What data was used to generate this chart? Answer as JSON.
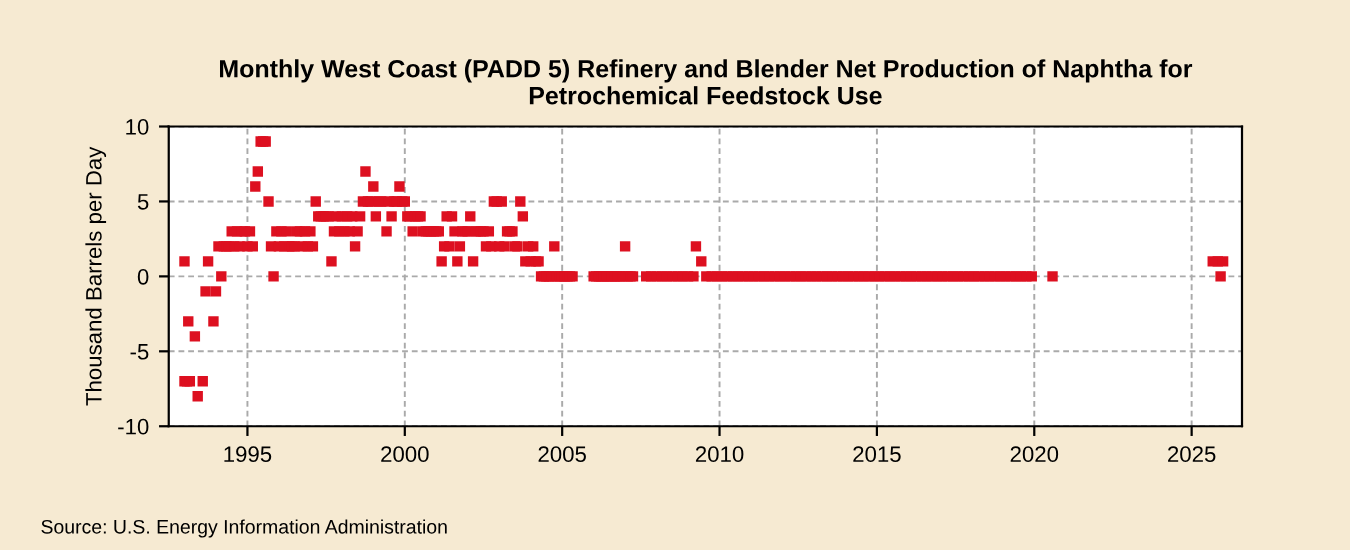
{
  "chart_data": {
    "type": "scatter",
    "title": "Monthly West Coast (PADD 5) Refinery and Blender Net Production of Naphtha for\nPetrochemical Feedstock Use",
    "ylabel": "Thousand Barrels per Day",
    "annotations": [
      "Source: U.S. Energy Information Administration"
    ],
    "xlim": [
      1992.5,
      2026.6
    ],
    "xticks": [
      1995,
      2000,
      2005,
      2010,
      2015,
      2020,
      2025
    ],
    "ylim": [
      -10,
      10
    ],
    "yticks": [
      -10,
      -5,
      0,
      5,
      10
    ],
    "grid": true,
    "marker": "square",
    "legend": false,
    "series": [
      {
        "color": "#dd1020",
        "x": [
          1993.0,
          1993.0,
          1993.08,
          1993.12,
          1993.17,
          1993.33,
          1993.42,
          1993.58,
          1993.67,
          1993.75,
          1993.92,
          1994.0,
          1994.08,
          1994.17,
          1994.25,
          1994.33,
          1994.42,
          1994.5,
          1994.58,
          1994.67,
          1994.75,
          1994.83,
          1994.92,
          1995.0,
          1995.08,
          1995.17,
          1995.25,
          1995.33,
          1995.42,
          1995.5,
          1995.58,
          1995.67,
          1995.75,
          1995.83,
          1995.92,
          1996.0,
          1996.08,
          1996.17,
          1996.25,
          1996.33,
          1996.42,
          1996.5,
          1996.58,
          1996.67,
          1996.75,
          1996.83,
          1996.92,
          1997.0,
          1997.08,
          1997.17,
          1997.25,
          1997.33,
          1997.42,
          1997.5,
          1997.58,
          1997.67,
          1997.75,
          1997.83,
          1997.92,
          1998.0,
          1998.08,
          1998.17,
          1998.25,
          1998.33,
          1998.42,
          1998.5,
          1998.58,
          1998.67,
          1998.75,
          1998.83,
          1998.92,
          1999.0,
          1999.08,
          1999.17,
          1999.25,
          1999.42,
          1999.5,
          1999.58,
          1999.67,
          1999.75,
          1999.83,
          1999.92,
          2000.0,
          2000.08,
          2000.17,
          2000.25,
          2000.33,
          2000.42,
          2000.5,
          2000.58,
          2000.67,
          2000.75,
          2000.83,
          2000.92,
          2001.0,
          2001.08,
          2001.17,
          2001.25,
          2001.33,
          2001.42,
          2001.5,
          2001.58,
          2001.67,
          2001.75,
          2001.83,
          2001.92,
          2002.0,
          2002.08,
          2002.17,
          2002.25,
          2002.33,
          2002.42,
          2002.5,
          2002.58,
          2002.67,
          2002.75,
          2002.83,
          2002.92,
          2003.0,
          2003.08,
          2003.17,
          2003.25,
          2003.33,
          2003.42,
          2003.5,
          2003.58,
          2003.67,
          2003.75,
          2003.83,
          2003.92,
          2004.0,
          2004.08,
          2004.17,
          2004.25,
          2004.33,
          2004.42,
          2004.5,
          2004.58,
          2004.67,
          2004.75,
          2004.83,
          2004.92,
          2005.0,
          2005.08,
          2005.17,
          2005.25,
          2005.33,
          2006.0,
          2006.08,
          2006.17,
          2006.25,
          2006.33,
          2006.42,
          2006.5,
          2006.58,
          2006.67,
          2006.75,
          2006.83,
          2006.92,
          2007.0,
          2007.08,
          2007.17,
          2007.25,
          2007.67,
          2007.83,
          2008.0,
          2008.17,
          2008.33,
          2008.5,
          2008.67,
          2008.83,
          2009.0,
          2009.17,
          2009.25,
          2009.42,
          2009.58,
          2009.75,
          2009.92,
          2010.08,
          2010.25,
          2010.42,
          2010.58,
          2010.75,
          2010.92,
          2011.08,
          2011.25,
          2011.42,
          2011.58,
          2011.75,
          2011.92,
          2012.08,
          2012.25,
          2012.42,
          2012.58,
          2012.75,
          2012.92,
          2013.08,
          2013.25,
          2013.42,
          2013.58,
          2013.75,
          2013.92,
          2014.08,
          2014.25,
          2014.42,
          2014.58,
          2014.75,
          2014.92,
          2015.08,
          2015.25,
          2015.42,
          2015.58,
          2015.75,
          2015.92,
          2016.08,
          2016.25,
          2016.42,
          2016.58,
          2016.75,
          2016.92,
          2017.08,
          2017.25,
          2017.42,
          2017.58,
          2017.75,
          2017.92,
          2018.08,
          2018.25,
          2018.42,
          2018.58,
          2018.75,
          2018.92,
          2019.08,
          2019.25,
          2019.42,
          2019.58,
          2019.75,
          2019.92,
          2020.58,
          2025.67,
          2025.83,
          2025.92,
          2026.0
        ],
        "values": [
          1,
          -7,
          -7,
          -3,
          -7,
          -4,
          -8,
          -7,
          -1,
          1,
          -3,
          -1,
          2,
          0,
          2,
          2,
          2,
          3,
          2,
          3,
          2,
          3,
          3,
          2,
          3,
          2,
          6,
          7,
          9,
          9,
          9,
          5,
          2,
          0,
          3,
          2,
          3,
          2,
          3,
          2,
          2,
          2,
          3,
          3,
          2,
          3,
          2,
          3,
          2,
          5,
          4,
          4,
          4,
          4,
          4,
          1,
          3,
          4,
          3,
          4,
          3,
          4,
          3,
          4,
          2,
          3,
          4,
          5,
          7,
          5,
          5,
          6,
          4,
          5,
          5,
          3,
          5,
          4,
          5,
          5,
          6,
          5,
          5,
          4,
          4,
          3,
          4,
          4,
          4,
          3,
          3,
          3,
          3,
          3,
          3,
          3,
          1,
          2,
          4,
          2,
          4,
          3,
          1,
          2,
          3,
          3,
          3,
          4,
          1,
          3,
          3,
          3,
          3,
          2,
          3,
          2,
          5,
          5,
          2,
          5,
          2,
          3,
          3,
          3,
          2,
          2,
          5,
          4,
          1,
          2,
          1,
          2,
          1,
          1,
          0,
          0,
          0,
          0,
          0,
          2,
          0,
          0,
          0,
          0,
          0,
          0,
          0,
          0,
          0,
          0,
          0,
          0,
          0,
          0,
          0,
          0,
          0,
          0,
          0,
          2,
          0,
          0,
          0,
          0,
          0,
          0,
          0,
          0,
          0,
          0,
          0,
          0,
          0,
          2,
          1,
          0,
          0,
          0,
          0,
          0,
          0,
          0,
          0,
          0,
          0,
          0,
          0,
          0,
          0,
          0,
          0,
          0,
          0,
          0,
          0,
          0,
          0,
          0,
          0,
          0,
          0,
          0,
          0,
          0,
          0,
          0,
          0,
          0,
          0,
          0,
          0,
          0,
          0,
          0,
          0,
          0,
          0,
          0,
          0,
          0,
          0,
          0,
          0,
          0,
          0,
          0,
          0,
          0,
          0,
          0,
          0,
          0,
          0,
          0,
          0,
          0,
          0,
          0,
          0,
          1,
          1,
          0,
          1
        ]
      }
    ]
  }
}
